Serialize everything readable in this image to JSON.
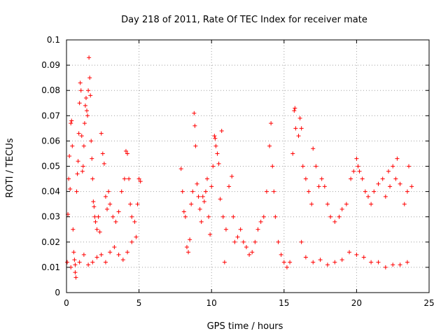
{
  "chart_data": {
    "type": "scatter",
    "title": "Day 218 of 2011, Rate Of TEC Index for receiver mate",
    "xlabel": "GPS time / hours",
    "ylabel": "ROTI / TECUs",
    "xlim": [
      0,
      25
    ],
    "ylim": [
      0,
      0.1
    ],
    "xticks": [
      "0",
      "5",
      "10",
      "15",
      "20",
      "25"
    ],
    "yticks": [
      "0",
      "0.01",
      "0.02",
      "0.03",
      "0.04",
      "0.05",
      "0.06",
      "0.07",
      "0.08",
      "0.09",
      "0.1"
    ],
    "grid": true,
    "marker": "+",
    "color": "#ff0000",
    "points": [
      [
        0.05,
        0.012
      ],
      [
        0.1,
        0.031
      ],
      [
        0.15,
        0.045
      ],
      [
        0.2,
        0.054
      ],
      [
        0.25,
        0.041
      ],
      [
        0.3,
        0.067
      ],
      [
        0.35,
        0.068
      ],
      [
        0.4,
        0.058
      ],
      [
        0.45,
        0.025
      ],
      [
        0.5,
        0.016
      ],
      [
        0.55,
        0.013
      ],
      [
        0.6,
        0.008
      ],
      [
        0.65,
        0.006
      ],
      [
        0.7,
        0.04
      ],
      [
        0.75,
        0.047
      ],
      [
        0.8,
        0.052
      ],
      [
        0.85,
        0.063
      ],
      [
        0.9,
        0.075
      ],
      [
        0.95,
        0.083
      ],
      [
        1.0,
        0.08
      ],
      [
        1.05,
        0.062
      ],
      [
        1.1,
        0.048
      ],
      [
        1.15,
        0.05
      ],
      [
        1.2,
        0.058
      ],
      [
        1.25,
        0.067
      ],
      [
        1.3,
        0.074
      ],
      [
        1.35,
        0.077
      ],
      [
        1.4,
        0.072
      ],
      [
        1.45,
        0.07
      ],
      [
        1.5,
        0.08
      ],
      [
        1.55,
        0.093
      ],
      [
        1.6,
        0.085
      ],
      [
        1.65,
        0.078
      ],
      [
        1.7,
        0.06
      ],
      [
        1.75,
        0.053
      ],
      [
        1.8,
        0.045
      ],
      [
        1.85,
        0.036
      ],
      [
        1.9,
        0.034
      ],
      [
        1.95,
        0.03
      ],
      [
        2.0,
        0.028
      ],
      [
        2.1,
        0.025
      ],
      [
        2.2,
        0.03
      ],
      [
        2.3,
        0.024
      ],
      [
        2.4,
        0.063
      ],
      [
        2.5,
        0.055
      ],
      [
        2.6,
        0.051
      ],
      [
        2.7,
        0.038
      ],
      [
        2.8,
        0.033
      ],
      [
        2.9,
        0.04
      ],
      [
        3.0,
        0.035
      ],
      [
        3.2,
        0.03
      ],
      [
        3.4,
        0.028
      ],
      [
        3.6,
        0.032
      ],
      [
        3.8,
        0.04
      ],
      [
        4.0,
        0.045
      ],
      [
        4.1,
        0.056
      ],
      [
        4.2,
        0.055
      ],
      [
        4.3,
        0.045
      ],
      [
        4.4,
        0.035
      ],
      [
        4.5,
        0.03
      ],
      [
        4.7,
        0.028
      ],
      [
        4.9,
        0.035
      ],
      [
        5.0,
        0.045
      ],
      [
        5.1,
        0.044
      ],
      [
        0.3,
        0.01
      ],
      [
        0.6,
        0.011
      ],
      [
        0.9,
        0.012
      ],
      [
        1.2,
        0.015
      ],
      [
        1.5,
        0.011
      ],
      [
        1.8,
        0.012
      ],
      [
        2.1,
        0.014
      ],
      [
        2.4,
        0.015
      ],
      [
        2.7,
        0.012
      ],
      [
        3.0,
        0.016
      ],
      [
        3.3,
        0.018
      ],
      [
        3.6,
        0.015
      ],
      [
        3.9,
        0.013
      ],
      [
        4.2,
        0.016
      ],
      [
        4.5,
        0.02
      ],
      [
        4.8,
        0.022
      ],
      [
        7.9,
        0.049
      ],
      [
        8.0,
        0.04
      ],
      [
        8.1,
        0.032
      ],
      [
        8.2,
        0.03
      ],
      [
        8.3,
        0.018
      ],
      [
        8.4,
        0.016
      ],
      [
        8.5,
        0.021
      ],
      [
        8.6,
        0.035
      ],
      [
        8.7,
        0.04
      ],
      [
        8.8,
        0.071
      ],
      [
        8.85,
        0.066
      ],
      [
        8.9,
        0.058
      ],
      [
        9.0,
        0.043
      ],
      [
        9.1,
        0.038
      ],
      [
        9.2,
        0.033
      ],
      [
        9.3,
        0.028
      ],
      [
        9.4,
        0.038
      ],
      [
        9.5,
        0.036
      ],
      [
        9.6,
        0.04
      ],
      [
        9.7,
        0.045
      ],
      [
        9.8,
        0.03
      ],
      [
        9.9,
        0.023
      ],
      [
        10.0,
        0.042
      ],
      [
        10.1,
        0.05
      ],
      [
        10.2,
        0.062
      ],
      [
        10.25,
        0.061
      ],
      [
        10.3,
        0.058
      ],
      [
        10.4,
        0.055
      ],
      [
        10.5,
        0.051
      ],
      [
        10.6,
        0.037
      ],
      [
        10.7,
        0.064
      ],
      [
        10.8,
        0.03
      ],
      [
        10.9,
        0.012
      ],
      [
        11.0,
        0.025
      ],
      [
        11.2,
        0.042
      ],
      [
        11.4,
        0.046
      ],
      [
        11.5,
        0.03
      ],
      [
        11.6,
        0.02
      ],
      [
        11.8,
        0.022
      ],
      [
        12.0,
        0.025
      ],
      [
        12.2,
        0.02
      ],
      [
        12.4,
        0.018
      ],
      [
        12.6,
        0.015
      ],
      [
        12.8,
        0.016
      ],
      [
        13.0,
        0.02
      ],
      [
        13.2,
        0.025
      ],
      [
        13.4,
        0.028
      ],
      [
        13.6,
        0.03
      ],
      [
        13.8,
        0.04
      ],
      [
        14.0,
        0.058
      ],
      [
        14.1,
        0.067
      ],
      [
        14.2,
        0.05
      ],
      [
        14.3,
        0.04
      ],
      [
        14.4,
        0.03
      ],
      [
        14.6,
        0.02
      ],
      [
        14.8,
        0.015
      ],
      [
        15.0,
        0.012
      ],
      [
        15.2,
        0.01
      ],
      [
        15.4,
        0.012
      ],
      [
        15.6,
        0.055
      ],
      [
        15.7,
        0.072
      ],
      [
        15.75,
        0.073
      ],
      [
        15.8,
        0.065
      ],
      [
        16.0,
        0.062
      ],
      [
        16.1,
        0.069
      ],
      [
        16.2,
        0.065
      ],
      [
        16.3,
        0.05
      ],
      [
        16.5,
        0.045
      ],
      [
        16.7,
        0.04
      ],
      [
        16.9,
        0.035
      ],
      [
        17.0,
        0.057
      ],
      [
        17.2,
        0.05
      ],
      [
        17.4,
        0.042
      ],
      [
        17.6,
        0.045
      ],
      [
        17.8,
        0.042
      ],
      [
        18.0,
        0.035
      ],
      [
        18.2,
        0.03
      ],
      [
        18.5,
        0.028
      ],
      [
        18.8,
        0.03
      ],
      [
        19.0,
        0.033
      ],
      [
        19.3,
        0.035
      ],
      [
        19.6,
        0.045
      ],
      [
        19.8,
        0.048
      ],
      [
        20.0,
        0.053
      ],
      [
        20.1,
        0.05
      ],
      [
        20.2,
        0.048
      ],
      [
        20.4,
        0.045
      ],
      [
        20.6,
        0.04
      ],
      [
        20.8,
        0.038
      ],
      [
        21.0,
        0.035
      ],
      [
        21.2,
        0.04
      ],
      [
        21.5,
        0.043
      ],
      [
        21.8,
        0.045
      ],
      [
        22.0,
        0.038
      ],
      [
        22.2,
        0.048
      ],
      [
        22.3,
        0.042
      ],
      [
        22.5,
        0.05
      ],
      [
        22.7,
        0.045
      ],
      [
        22.8,
        0.053
      ],
      [
        23.0,
        0.043
      ],
      [
        23.3,
        0.035
      ],
      [
        23.5,
        0.04
      ],
      [
        23.6,
        0.05
      ],
      [
        23.8,
        0.042
      ],
      [
        17.0,
        0.012
      ],
      [
        18.0,
        0.011
      ],
      [
        19.0,
        0.013
      ],
      [
        20.0,
        0.015
      ],
      [
        21.0,
        0.012
      ],
      [
        22.0,
        0.01
      ],
      [
        23.0,
        0.011
      ],
      [
        16.5,
        0.014
      ],
      [
        17.5,
        0.013
      ],
      [
        18.5,
        0.012
      ],
      [
        19.5,
        0.016
      ],
      [
        20.5,
        0.014
      ],
      [
        21.5,
        0.012
      ],
      [
        22.5,
        0.011
      ],
      [
        23.5,
        0.012
      ],
      [
        16.2,
        0.02
      ]
    ]
  }
}
